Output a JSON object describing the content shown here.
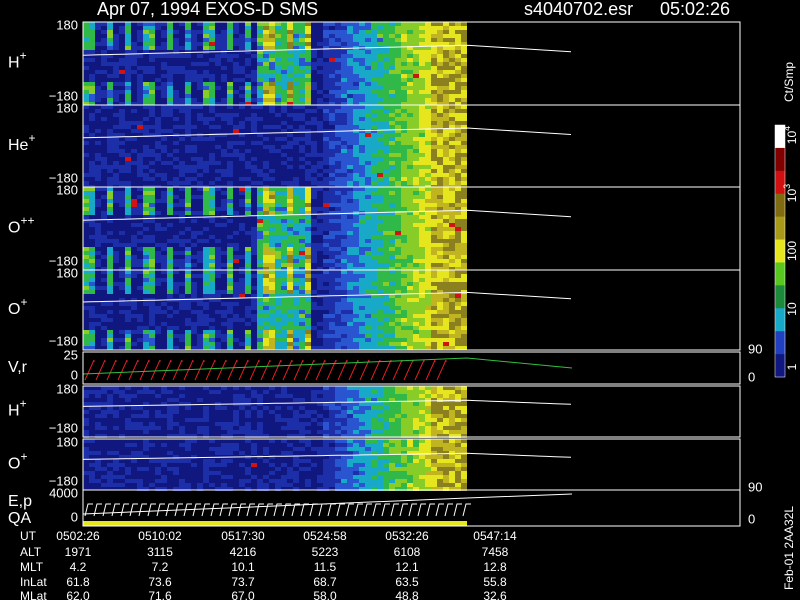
{
  "header": {
    "title": "Apr 07, 1994    EXOS-D SMS",
    "file": "s4040702.esr",
    "time": "05:02:26"
  },
  "panels": [
    {
      "label": "H",
      "sup": "+",
      "ytop": "180",
      "ybottom": "−180"
    },
    {
      "label": "He",
      "sup": "+",
      "ytop": "180",
      "ybottom": "−180"
    },
    {
      "label": "O",
      "sup": "++",
      "ytop": "180",
      "ybottom": "−180"
    },
    {
      "label": "O",
      "sup": "+",
      "ytop": "180",
      "ybottom": "−180"
    },
    {
      "label": "V,r",
      "ytop": "25",
      "ybottom": "0",
      "rtop": "90",
      "rbottom": "0"
    },
    {
      "label": "H",
      "sup": "+",
      "ytop": "180",
      "ybottom": "−180"
    },
    {
      "label": "O",
      "sup": "+",
      "ytop": "180",
      "ybottom": "−180"
    },
    {
      "label": "E,p",
      "label2": "QA",
      "ytop": "4000",
      "ybottom": "0",
      "rtop": "90",
      "rbottom": "0"
    }
  ],
  "colorbar": {
    "unit": "Ct/Smp",
    "ticks": [
      {
        "base": "1"
      },
      {
        "base": "10"
      },
      {
        "base": "100"
      },
      {
        "base": "10",
        "sup": "3"
      },
      {
        "base": "10",
        "sup": "4"
      }
    ]
  },
  "ephemeris": {
    "labels": [
      "UT",
      "ALT",
      "MLT",
      "InLat",
      "MLat"
    ],
    "columns": [
      [
        "0502:26",
        "1971",
        "4.2",
        "61.8",
        "62.0"
      ],
      [
        "0510:02",
        "3115",
        "7.2",
        "73.6",
        "71.6"
      ],
      [
        "0517:30",
        "4216",
        "10.1",
        "73.7",
        "67.0"
      ],
      [
        "0524:58",
        "5223",
        "11.5",
        "68.7",
        "58.0"
      ],
      [
        "0532:26",
        "6108",
        "12.1",
        "63.5",
        "48.8"
      ],
      [
        "0547:14",
        "7458",
        "12.8",
        "55.8",
        "32.6"
      ]
    ]
  },
  "footer": "Feb-01 2AA32L"
}
